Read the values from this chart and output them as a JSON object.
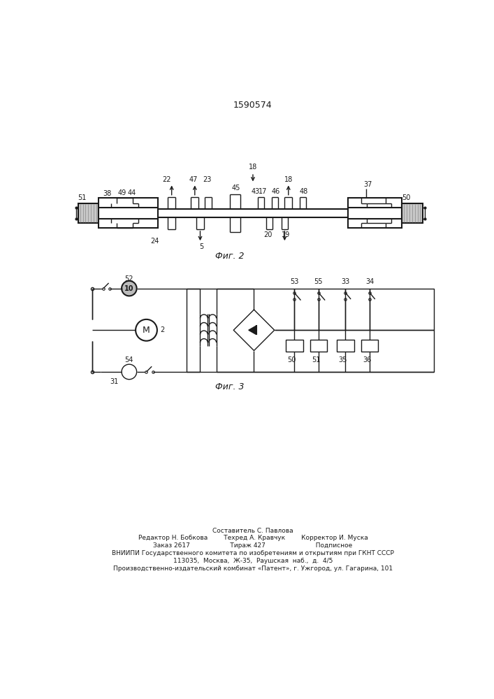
{
  "title": "1590574",
  "fig2_label": "Фиг. 2",
  "fig3_label": "Фиг. 3",
  "footer_lines": [
    "Составитель С. Павлова",
    "Редактор Н. Бобкова        Техред А. Кравчук        Корректор И. Муска",
    "Заказ 2617                    Тираж 427                         Подписное",
    "ВНИИПИ Государственного комитета по изобретениям и открытиям при ГКНТ СССР",
    "113035,  Москва,  Ж-35,  Раушская  наб.,  д.  4/5",
    "Производственно-издательский комбинат «Патент», г. Ужгород, ул. Гагарина, 101"
  ],
  "bg_color": "#ffffff",
  "line_color": "#1a1a1a"
}
